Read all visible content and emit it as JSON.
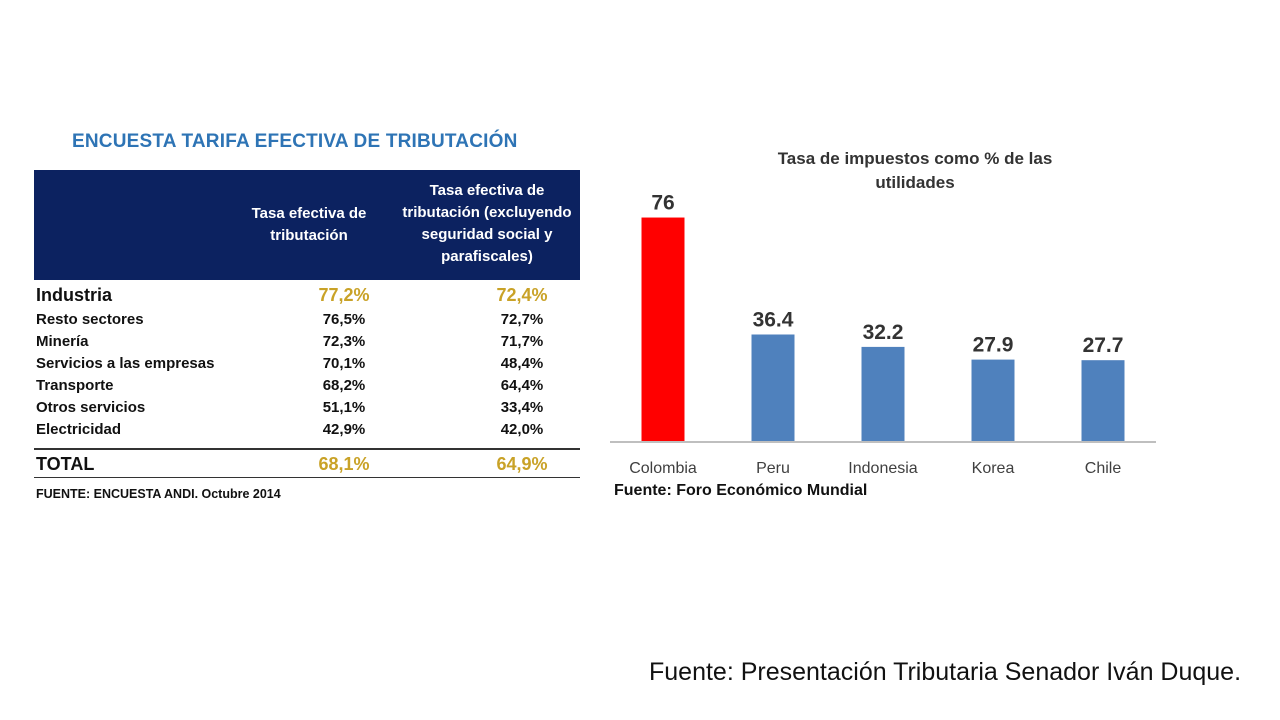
{
  "table": {
    "title": "ENCUESTA TARIFA EFECTIVA DE TRIBUTACIÓN",
    "header_col1": "Tasa efectiva de tributación",
    "header_col2": "Tasa efectiva de tributación (excluyendo seguridad social y parafiscales)",
    "rows": [
      {
        "label": "Industria",
        "v1": "77,2%",
        "v2": "72,4%"
      },
      {
        "label": "Resto sectores",
        "v1": "76,5%",
        "v2": "72,7%"
      },
      {
        "label": "Minería",
        "v1": "72,3%",
        "v2": "71,7%"
      },
      {
        "label": "Servicios a las empresas",
        "v1": "70,1%",
        "v2": "48,4%"
      },
      {
        "label": "Transporte",
        "v1": "68,2%",
        "v2": "64,4%"
      },
      {
        "label": "Otros servicios",
        "v1": "51,1%",
        "v2": "33,4%"
      },
      {
        "label": "Electricidad",
        "v1": "42,9%",
        "v2": "42,0%"
      }
    ],
    "total": {
      "label": "TOTAL",
      "v1": "68,1%",
      "v2": "64,9%"
    },
    "source": "FUENTE: ENCUESTA ANDI. Octubre 2014"
  },
  "chart_data": {
    "type": "bar",
    "title": "Tasa de impuestos como % de las utilidades",
    "categories": [
      "Colombia",
      "Peru",
      "Indonesia",
      "Korea",
      "Chile"
    ],
    "values": [
      76,
      36.4,
      32.2,
      27.9,
      27.7
    ],
    "value_labels": [
      "76",
      "36.4",
      "32.2",
      "27.9",
      "27.7"
    ],
    "colors": [
      "#ff0000",
      "#4f81bd",
      "#4f81bd",
      "#4f81bd",
      "#4f81bd"
    ],
    "xlabel": "",
    "ylabel": "",
    "ylim": [
      0,
      86
    ],
    "grid": false
  },
  "chart_source": "Fuente: Foro Económico Mundial",
  "bottom_source": "Fuente: Presentación Tributaria Senador Iván Duque."
}
